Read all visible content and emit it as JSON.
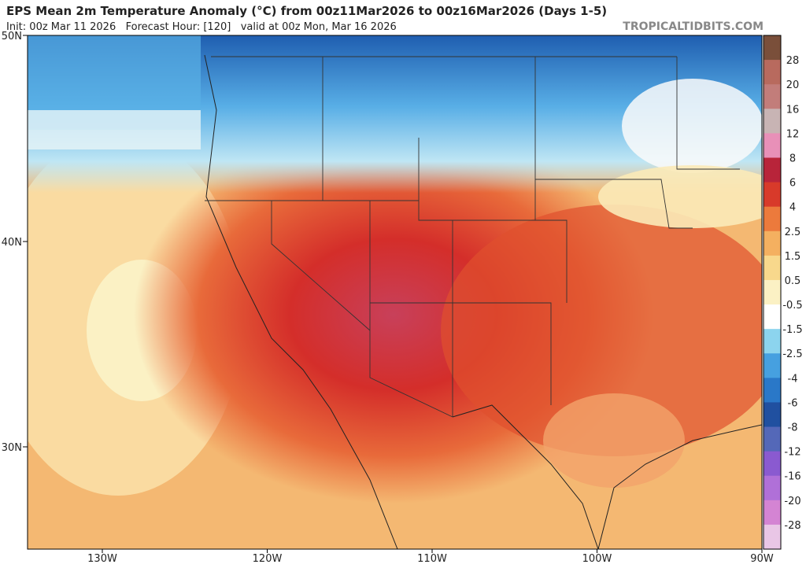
{
  "header": {
    "title": "EPS Mean 2m Temperature Anomaly (°C) from 00z11Mar2026 to 00z16Mar2026 (Days 1-5)",
    "info": "Init: 00z Mar 11 2026   Forecast Hour: [120]   valid at 00z Mon, Mar 16 2026",
    "brand": "TROPICALTIDBITS.COM"
  },
  "map": {
    "lat_labels": [
      "50N",
      "40N",
      "30N"
    ],
    "lon_labels": [
      "130W",
      "120W",
      "110W",
      "100W",
      "90W"
    ]
  },
  "legend": {
    "labels": [
      "28",
      "20",
      "16",
      "12",
      "8",
      "6",
      "4",
      "2.5",
      "1.5",
      "0.5",
      "-0.5",
      "-1.5",
      "-2.5",
      "-4",
      "-6",
      "-8",
      "-12",
      "-16",
      "-20",
      "-28"
    ],
    "colors": [
      "#7a4f3a",
      "#b86a5e",
      "#c27d7a",
      "#c8b4b4",
      "#e890b8",
      "#b8243a",
      "#d83a2a",
      "#ec7a3c",
      "#f4b060",
      "#f8d88c",
      "#fbf1c4",
      "#ffffff",
      "#8cd4ee",
      "#46a0e0",
      "#2a78c8",
      "#2050a0",
      "#5468b8",
      "#8a5ad0",
      "#b070d8",
      "#d484d3",
      "#e9c6e6"
    ]
  }
}
